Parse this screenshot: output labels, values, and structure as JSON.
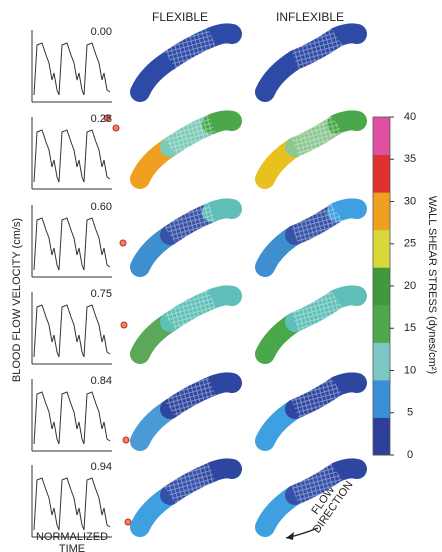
{
  "figure": {
    "columns": [
      "FLEXIBLE",
      "INFLEXIBLE"
    ],
    "y_axis_label": "BLOOD FLOW VELOCITY (cm/s)",
    "x_axis_label": [
      "NORMALIZED",
      "TIME"
    ],
    "times": [
      "0.00",
      "0.28",
      "0.60",
      "0.75",
      "0.84",
      "0.94"
    ],
    "colorbar": {
      "label": "WALL SHEAR STRESS (dynes/cm²)",
      "lim": [
        0,
        40
      ],
      "ticks": [
        0,
        5,
        10,
        15,
        20,
        25,
        30,
        35,
        40
      ]
    },
    "annotation": [
      "FLOW",
      "DIRECTION"
    ]
  }
}
